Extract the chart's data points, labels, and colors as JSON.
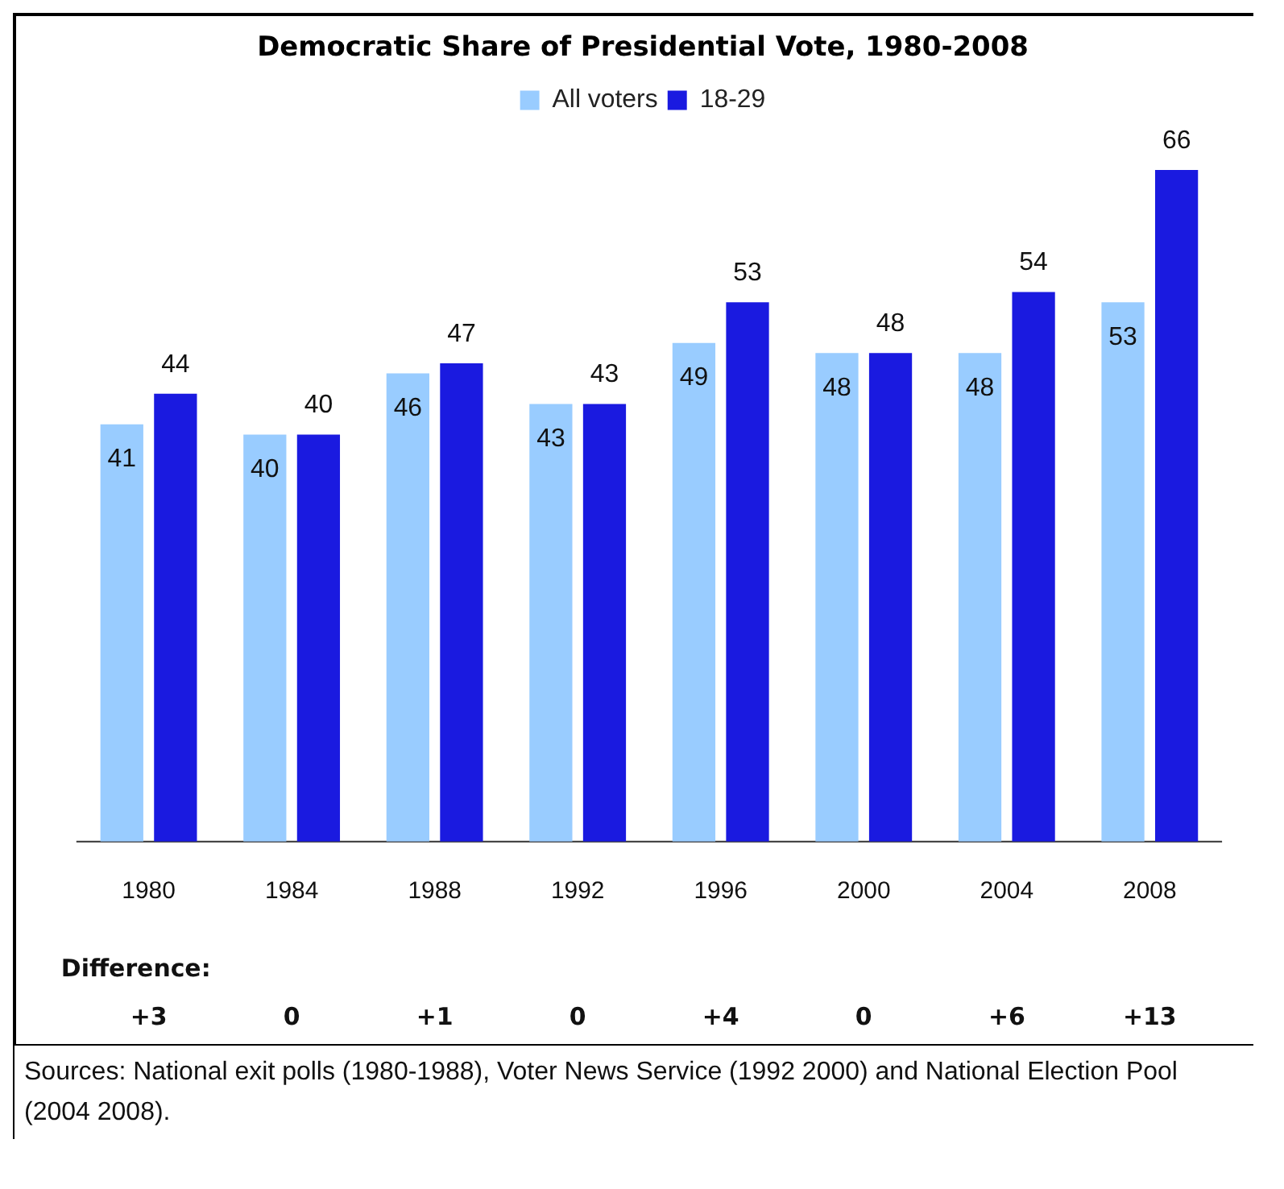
{
  "chart_data": {
    "type": "bar",
    "title": "Democratic Share of Presidential Vote, 1980-2008",
    "categories": [
      "1980",
      "1984",
      "1988",
      "1992",
      "1996",
      "2000",
      "2004",
      "2008"
    ],
    "series": [
      {
        "name": "All voters",
        "color": "#99ccff",
        "values": [
          41,
          40,
          46,
          43,
          49,
          48,
          48,
          53
        ]
      },
      {
        "name": "18-29",
        "color": "#1a1ae0",
        "values": [
          44,
          40,
          47,
          43,
          53,
          48,
          54,
          66
        ]
      }
    ],
    "data_labels": true,
    "legend": "top",
    "grid": false,
    "relative": false,
    "annotations": [
      "Difference:",
      "+3",
      "0",
      "+1",
      "0",
      "+4",
      "0",
      "+6",
      "+13",
      "Sources: National exit polls (1980-1988), Voter News Service (1992 2000) and National Election Pool (2004 2008)."
    ]
  }
}
